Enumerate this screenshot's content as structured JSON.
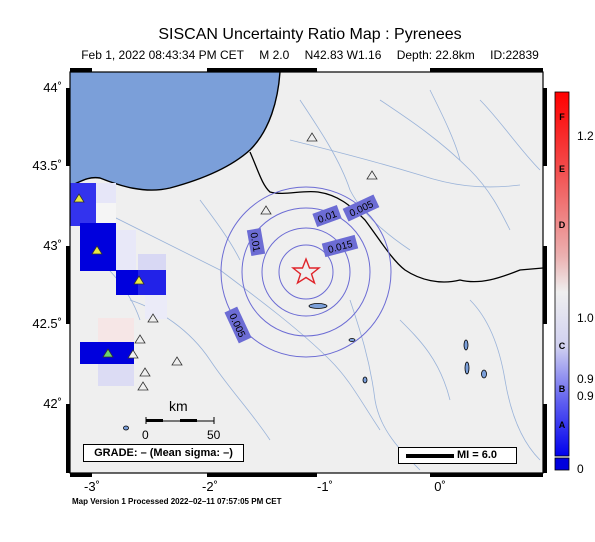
{
  "map": {
    "title": "SISCAN Uncertainty Ratio Map : Pyrenees",
    "subtitle": {
      "datetime": "Feb  1, 2022 08:43:34 PM CET",
      "magnitude": "M 2.0",
      "location": "N42.83 W1.16",
      "depth": "Depth: 22.8km",
      "id": "ID:22839"
    },
    "y_labels": [
      "44˚",
      "43.5˚",
      "43˚",
      "42.5˚",
      "42˚"
    ],
    "x_labels": [
      "-3˚",
      "-2˚",
      "-1˚",
      "0˚"
    ],
    "contours": [
      "0.005",
      "0.01",
      "0.015",
      "0.01",
      "0.005"
    ],
    "scale": {
      "unit": "km",
      "ticks": [
        "0",
        "50"
      ]
    },
    "grade": "GRADE: – (Mean sigma: –)",
    "mi_legend": "MI = 6.0",
    "footer": "Map Version 1 Processed 2022–02–11 07:57:05 PM CET",
    "colorbar": {
      "letters": [
        "F",
        "E",
        "D",
        "C",
        "B",
        "A"
      ],
      "values": [
        "1.2",
        "1.0",
        "0.9",
        "0.9",
        "0"
      ]
    },
    "colors": {
      "sea": "#7b9fd9",
      "land": "#efefef",
      "contour": "#6c6cd4",
      "epicenter": "#e0242a",
      "high": "#ff0000",
      "low": "#0000dd"
    }
  }
}
